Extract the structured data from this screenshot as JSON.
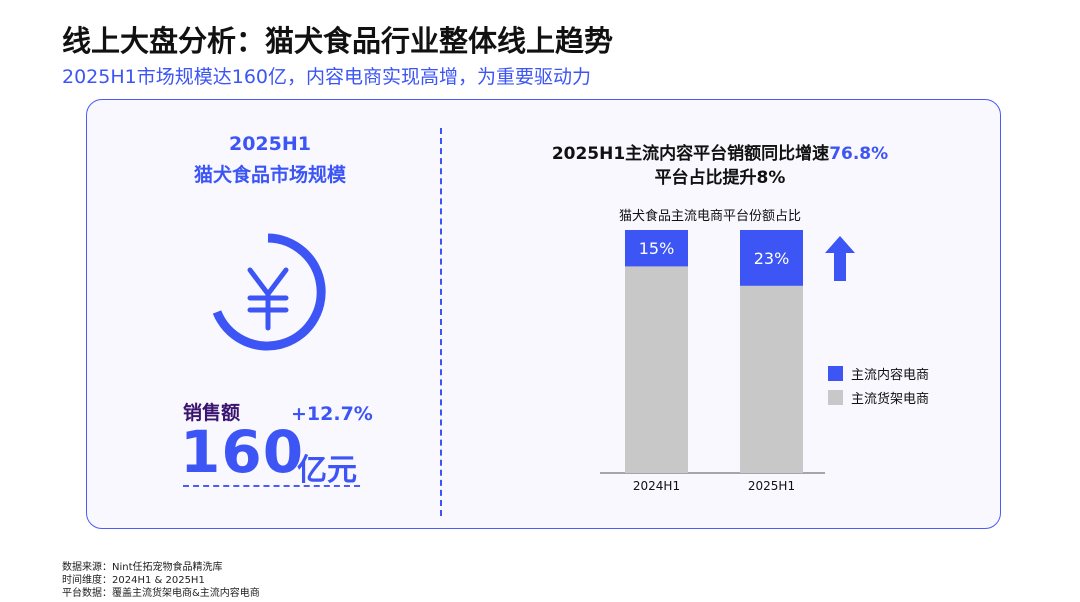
{
  "title": "线上大盘分析：猫犬食品行业整体线上趋势",
  "subtitle": "2025H1市场规模达160亿，内容电商实现高增，为重要驱动力",
  "left": {
    "line1": "2025H1",
    "line2": "猫犬食品市场规模",
    "icon": "yen-icon",
    "sales_label": "销售额",
    "growth": "+12.7%",
    "value": "160",
    "unit": "亿元"
  },
  "right": {
    "headline_prefix": "2025H1主流内容平台销额同比增速",
    "headline_value": "76.8%",
    "headline_line2": "平台占比提升8%"
  },
  "colors": {
    "accent": "#3d55f5",
    "grey": "#c8c8c8"
  },
  "chart_data": {
    "type": "bar",
    "stacked": true,
    "title": "猫犬食品主流电商平台份额占比",
    "categories": [
      "2024H1",
      "2025H1"
    ],
    "series": [
      {
        "name": "主流内容电商",
        "values": [
          15,
          23
        ],
        "color": "#3d55f5"
      },
      {
        "name": "主流货架电商",
        "values": [
          85,
          77
        ],
        "color": "#c8c8c8"
      }
    ],
    "data_labels": [
      "15%",
      "23%"
    ],
    "ylim": [
      0,
      100
    ],
    "legend": "right",
    "annotation": "up-arrow"
  },
  "footer": [
    "数据来源：Nint任拓宠物食品精洗库",
    "时间维度：2024H1 & 2025H1",
    "平台数据：覆盖主流货架电商&主流内容电商"
  ]
}
